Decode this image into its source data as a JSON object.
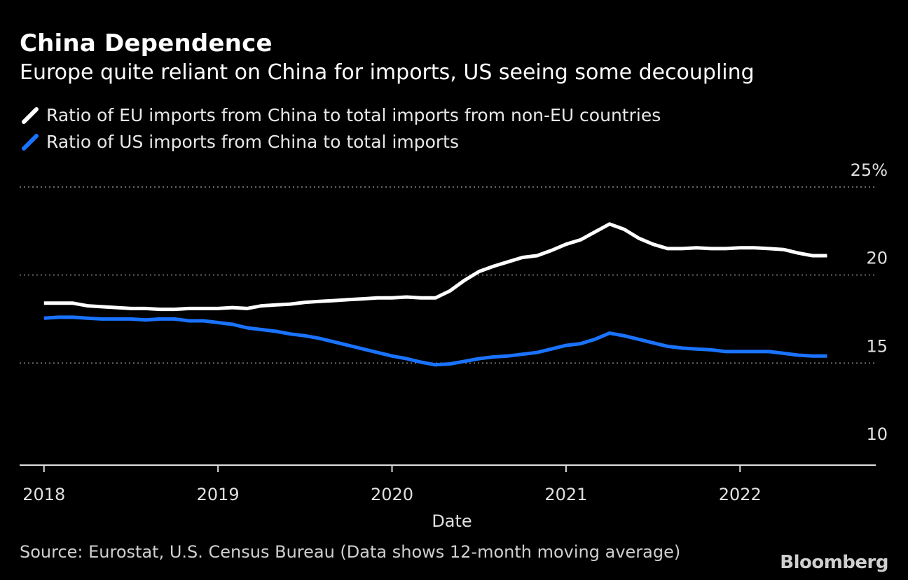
{
  "title": "China Dependence",
  "subtitle": "Europe quite reliant on China for imports, US seeing some decoupling",
  "legend": [
    {
      "label": "Ratio of EU imports from China to total imports from non-EU countries",
      "color": "#ffffff"
    },
    {
      "label": "Ratio of US imports from China to total imports",
      "color": "#1a73ff"
    }
  ],
  "source": "Source: Eurostat, U.S. Census Bureau (Data shows 12-month moving average)",
  "brand": "Bloomberg",
  "chart_data": {
    "type": "line",
    "title": "China Dependence",
    "xlabel": "Date",
    "ylabel": "",
    "ylim": [
      9.2,
      25
    ],
    "xlim": [
      2017.86,
      2022.78
    ],
    "y_ticks": [
      {
        "value": 25,
        "label": "25%"
      },
      {
        "value": 20,
        "label": "20"
      },
      {
        "value": 15,
        "label": "15"
      },
      {
        "value": 10,
        "label": "10"
      }
    ],
    "x_ticks": [
      {
        "value": 2018,
        "label": "2018"
      },
      {
        "value": 2019,
        "label": "2019"
      },
      {
        "value": 2020,
        "label": "2020"
      },
      {
        "value": 2021,
        "label": "2021"
      },
      {
        "value": 2022,
        "label": "2022"
      }
    ],
    "grid": true,
    "series": [
      {
        "name": "Ratio of EU imports from China to total imports from non-EU countries",
        "color": "#ffffff",
        "x": [
          2018.0,
          2018.0833,
          2018.1667,
          2018.25,
          2018.3333,
          2018.4167,
          2018.5,
          2018.5833,
          2018.6667,
          2018.75,
          2018.8333,
          2018.9167,
          2019.0,
          2019.0833,
          2019.1667,
          2019.25,
          2019.3333,
          2019.4167,
          2019.5,
          2019.5833,
          2019.6667,
          2019.75,
          2019.8333,
          2019.9167,
          2020.0,
          2020.0833,
          2020.1667,
          2020.25,
          2020.3333,
          2020.4167,
          2020.5,
          2020.5833,
          2020.6667,
          2020.75,
          2020.8333,
          2020.9167,
          2021.0,
          2021.0833,
          2021.1667,
          2021.25,
          2021.3333,
          2021.4167,
          2021.5,
          2021.5833,
          2021.6667,
          2021.75,
          2021.8333,
          2021.9167,
          2022.0,
          2022.0833,
          2022.1667,
          2022.25,
          2022.3333,
          2022.4167,
          2022.5
        ],
        "values": [
          18.4,
          18.4,
          18.4,
          18.25,
          18.2,
          18.15,
          18.1,
          18.1,
          18.05,
          18.05,
          18.1,
          18.1,
          18.1,
          18.15,
          18.1,
          18.25,
          18.3,
          18.35,
          18.45,
          18.5,
          18.55,
          18.6,
          18.65,
          18.7,
          18.7,
          18.75,
          18.7,
          18.7,
          19.1,
          19.7,
          20.2,
          20.5,
          20.75,
          21.0,
          21.1,
          21.4,
          21.75,
          22.0,
          22.45,
          22.9,
          22.6,
          22.1,
          21.75,
          21.5,
          21.5,
          21.55,
          21.5,
          21.5,
          21.55,
          21.55,
          21.5,
          21.45,
          21.25,
          21.1,
          21.1
        ]
      },
      {
        "name": "Ratio of US imports from China to total imports",
        "color": "#1a73ff",
        "x": [
          2018.0,
          2018.0833,
          2018.1667,
          2018.25,
          2018.3333,
          2018.4167,
          2018.5,
          2018.5833,
          2018.6667,
          2018.75,
          2018.8333,
          2018.9167,
          2019.0,
          2019.0833,
          2019.1667,
          2019.25,
          2019.3333,
          2019.4167,
          2019.5,
          2019.5833,
          2019.6667,
          2019.75,
          2019.8333,
          2019.9167,
          2020.0,
          2020.0833,
          2020.1667,
          2020.25,
          2020.3333,
          2020.4167,
          2020.5,
          2020.5833,
          2020.6667,
          2020.75,
          2020.8333,
          2020.9167,
          2021.0,
          2021.0833,
          2021.1667,
          2021.25,
          2021.3333,
          2021.4167,
          2021.5,
          2021.5833,
          2021.6667,
          2021.75,
          2021.8333,
          2021.9167,
          2022.0,
          2022.0833,
          2022.1667,
          2022.25,
          2022.3333,
          2022.4167,
          2022.5
        ],
        "values": [
          17.55,
          17.6,
          17.6,
          17.55,
          17.5,
          17.5,
          17.5,
          17.45,
          17.5,
          17.5,
          17.4,
          17.4,
          17.3,
          17.2,
          17.0,
          16.9,
          16.8,
          16.65,
          16.55,
          16.4,
          16.2,
          16.0,
          15.8,
          15.6,
          15.4,
          15.25,
          15.05,
          14.9,
          14.95,
          15.1,
          15.25,
          15.35,
          15.4,
          15.5,
          15.6,
          15.8,
          16.0,
          16.1,
          16.35,
          16.7,
          16.55,
          16.35,
          16.15,
          15.95,
          15.85,
          15.8,
          15.75,
          15.65,
          15.65,
          15.65,
          15.65,
          15.55,
          15.45,
          15.4,
          15.4
        ]
      }
    ]
  }
}
